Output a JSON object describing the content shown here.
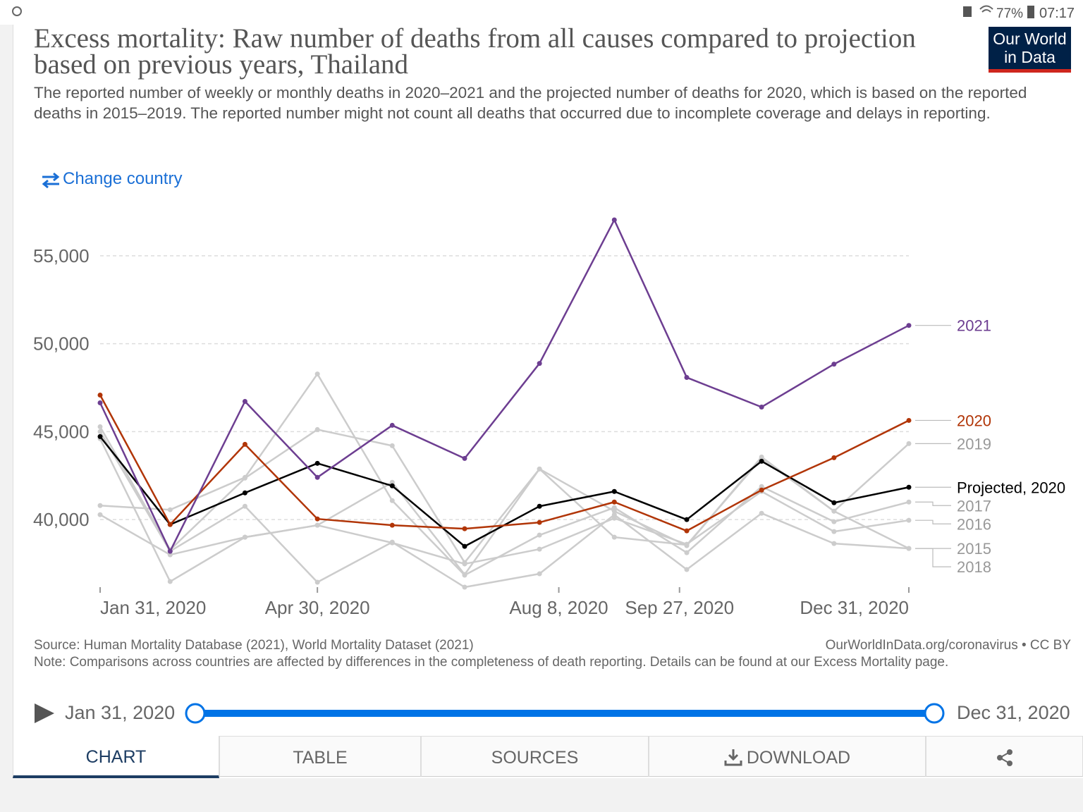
{
  "status_bar": {
    "battery": "77%",
    "time": "07:17"
  },
  "logo": [
    "Our World",
    "in Data"
  ],
  "change_country": "Change country",
  "chart_data": {
    "type": "line",
    "title": "Excess mortality: Raw number of deaths from all causes compared to projection based on previous years, Thailand",
    "subtitle": "The reported number of weekly or monthly deaths in 2020–2021 and the projected number of deaths for 2020, which is based on the reported deaths in 2015–2019. The reported number might not count all deaths that occurred due to incomplete coverage and delays in reporting.",
    "x": [
      "2020-01-31",
      "2020-02-29",
      "2020-03-31",
      "2020-04-30",
      "2020-05-31",
      "2020-06-30",
      "2020-07-31",
      "2020-08-31",
      "2020-09-30",
      "2020-10-31",
      "2020-11-30",
      "2020-12-31"
    ],
    "xlim": [
      "2020-01-31",
      "2020-12-31"
    ],
    "xticks": [
      {
        "value": "2020-01-31",
        "label": "Jan 31, 2020"
      },
      {
        "value": "2020-04-30",
        "label": "Apr 30, 2020"
      },
      {
        "value": "2020-08-08",
        "label": "Aug 8, 2020"
      },
      {
        "value": "2020-09-27",
        "label": "Sep 27, 2020"
      },
      {
        "value": "2020-12-31",
        "label": "Dec 31, 2020"
      }
    ],
    "ylim": [
      36000,
      57500
    ],
    "yticks": [
      {
        "value": 40000,
        "label": "40,000"
      },
      {
        "value": 45000,
        "label": "45,000"
      },
      {
        "value": 50000,
        "label": "50,000"
      },
      {
        "value": 55000,
        "label": "55,000"
      }
    ],
    "grid": true,
    "series": [
      {
        "name": "2019",
        "color": "#cccccc",
        "values": [
          45280,
          38280,
          42360,
          45120,
          44200,
          37560,
          42880,
          40480,
          38520,
          43560,
          40480,
          44320
        ]
      },
      {
        "name": "2017",
        "color": "#cccccc",
        "values": [
          40800,
          40560,
          42400,
          48280,
          41080,
          36840,
          39120,
          40680,
          38120,
          41880,
          39880,
          41000
        ]
      },
      {
        "name": "2016",
        "color": "#cccccc",
        "values": [
          40280,
          38000,
          39000,
          39680,
          38680,
          37480,
          38320,
          40080,
          38600,
          41600,
          39320,
          39960
        ]
      },
      {
        "name": "2015",
        "color": "#cccccc",
        "values": [
          45000,
          38200,
          40760,
          36440,
          38720,
          36160,
          36920,
          40280,
          37160,
          40360,
          38640,
          38360
        ]
      },
      {
        "name": "2018",
        "color": "#cccccc",
        "values": [
          44600,
          36480,
          39000,
          39680,
          42120,
          36880,
          42880,
          39000,
          38560,
          43480,
          40480,
          38360
        ]
      },
      {
        "name": "Projected, 2020",
        "color": "#000000",
        "values": [
          44720,
          39720,
          41520,
          43200,
          41920,
          38480,
          40760,
          41600,
          40000,
          43320,
          40960,
          41840
        ]
      },
      {
        "name": "2020",
        "color": "#b13507",
        "values": [
          47080,
          39720,
          44280,
          40040,
          39680,
          39480,
          39840,
          41000,
          39360,
          41680,
          43520,
          45640
        ]
      },
      {
        "name": "2021",
        "color": "#6d3e91",
        "values": [
          46640,
          38200,
          46720,
          42400,
          45360,
          43480,
          48880,
          57040,
          48080,
          46400,
          48840,
          51040
        ]
      }
    ]
  },
  "footer": {
    "source": "Source: Human Mortality Database (2021), World Mortality Dataset (2021)",
    "license": "OurWorldInData.org/coronavirus • CC BY",
    "note": "Note: Comparisons across countries are affected by differences in the completeness of death reporting. Details can be found at our Excess Mortality page."
  },
  "timeline": {
    "start": "Jan 31, 2020",
    "end": "Dec 31, 2020"
  },
  "tabs": [
    "CHART",
    "TABLE",
    "SOURCES",
    "DOWNLOAD"
  ]
}
